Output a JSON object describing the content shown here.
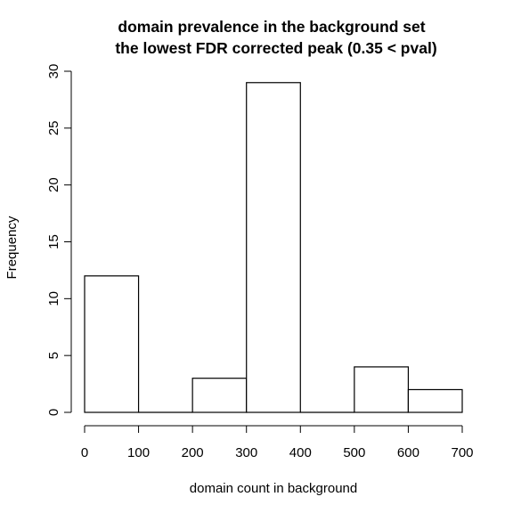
{
  "chart_data": {
    "type": "bar",
    "subtype": "histogram",
    "title": "domain prevalence in the background set",
    "subtitle": "the lowest FDR corrected peak (0.35 < pval)",
    "xlabel": "domain count in background",
    "ylabel": "Frequency",
    "bins": [
      {
        "start": 0,
        "end": 100,
        "value": 12
      },
      {
        "start": 100,
        "end": 200,
        "value": 0
      },
      {
        "start": 200,
        "end": 300,
        "value": 3
      },
      {
        "start": 300,
        "end": 400,
        "value": 29
      },
      {
        "start": 400,
        "end": 500,
        "value": 0
      },
      {
        "start": 500,
        "end": 600,
        "value": 4
      },
      {
        "start": 600,
        "end": 700,
        "value": 2
      }
    ],
    "xlim": [
      0,
      700
    ],
    "ylim": [
      0,
      30
    ],
    "x_ticks": [
      0,
      100,
      200,
      300,
      400,
      500,
      600,
      700
    ],
    "y_ticks": [
      0,
      5,
      10,
      15,
      20,
      25,
      30
    ],
    "grid": false,
    "legend": "none",
    "bar_fill": "#ffffff",
    "bar_stroke": "#000000"
  }
}
